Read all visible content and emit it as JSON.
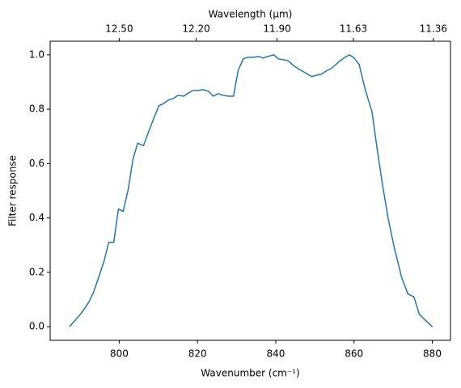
{
  "chart_data": {
    "type": "line",
    "xlabel": "Wavenumber (cm⁻¹)",
    "ylabel": "Filter response",
    "x2label": "Wavelength (μm)",
    "color": "#1f77b4",
    "x": [
      787.3,
      789.5,
      791,
      792.2,
      793.4,
      794.7,
      796.1,
      797.3,
      798.6,
      799.8,
      801,
      802.3,
      803.5,
      804.7,
      806.2,
      807.4,
      808.6,
      810.1,
      811.3,
      812.5,
      813.8,
      815,
      816.5,
      817.7,
      818.9,
      820.2,
      821.4,
      822.8,
      824,
      825.3,
      826.5,
      827.9,
      829.2,
      830.4,
      831.7,
      832.9,
      834.3,
      835.6,
      836.8,
      838,
      839.5,
      840.7,
      842,
      843.2,
      844.4,
      845.6,
      846.8,
      848,
      849.2,
      850.4,
      851.6,
      852.8,
      854,
      855.2,
      856.4,
      857.6,
      858.8,
      859.9,
      861.3,
      862.9,
      864.6,
      866,
      867.3,
      868.7,
      870.3,
      872.2,
      873.8,
      875.3,
      876.7,
      880
    ],
    "values": [
      0,
      0.036,
      0.063,
      0.09,
      0.125,
      0.18,
      0.24,
      0.31,
      0.31,
      0.433,
      0.424,
      0.505,
      0.615,
      0.675,
      0.666,
      0.713,
      0.758,
      0.812,
      0.821,
      0.833,
      0.839,
      0.851,
      0.848,
      0.86,
      0.869,
      0.869,
      0.872,
      0.866,
      0.848,
      0.857,
      0.851,
      0.848,
      0.848,
      0.943,
      0.985,
      0.991,
      0.991,
      0.994,
      0.988,
      0.994,
      1.0,
      0.985,
      0.982,
      0.978,
      0.962,
      0.95,
      0.94,
      0.93,
      0.92,
      0.925,
      0.928,
      0.94,
      0.948,
      0.962,
      0.978,
      0.99,
      1.0,
      0.99,
      0.965,
      0.87,
      0.79,
      0.645,
      0.52,
      0.4,
      0.29,
      0.18,
      0.12,
      0.11,
      0.045,
      0
    ],
    "xlim": [
      782.35,
      884.65
    ],
    "ylim": [
      -0.05,
      1.05
    ],
    "xticks": [
      800,
      820,
      840,
      860,
      880
    ],
    "yticks": [
      {
        "value": 0,
        "label": "0.0"
      },
      {
        "value": 0.2,
        "label": "0.2"
      },
      {
        "value": 0.4,
        "label": "0.4"
      },
      {
        "value": 0.6,
        "label": "0.6"
      },
      {
        "value": 0.8,
        "label": "0.8"
      },
      {
        "value": 1,
        "label": "1.0"
      }
    ],
    "x2ticks": [
      {
        "value": 12.5,
        "label": "12.50"
      },
      {
        "value": 12.2,
        "label": "12.20"
      },
      {
        "value": 11.9,
        "label": "11.90"
      },
      {
        "value": 11.63,
        "label": "11.63"
      },
      {
        "value": 11.36,
        "label": "11.36"
      }
    ]
  }
}
